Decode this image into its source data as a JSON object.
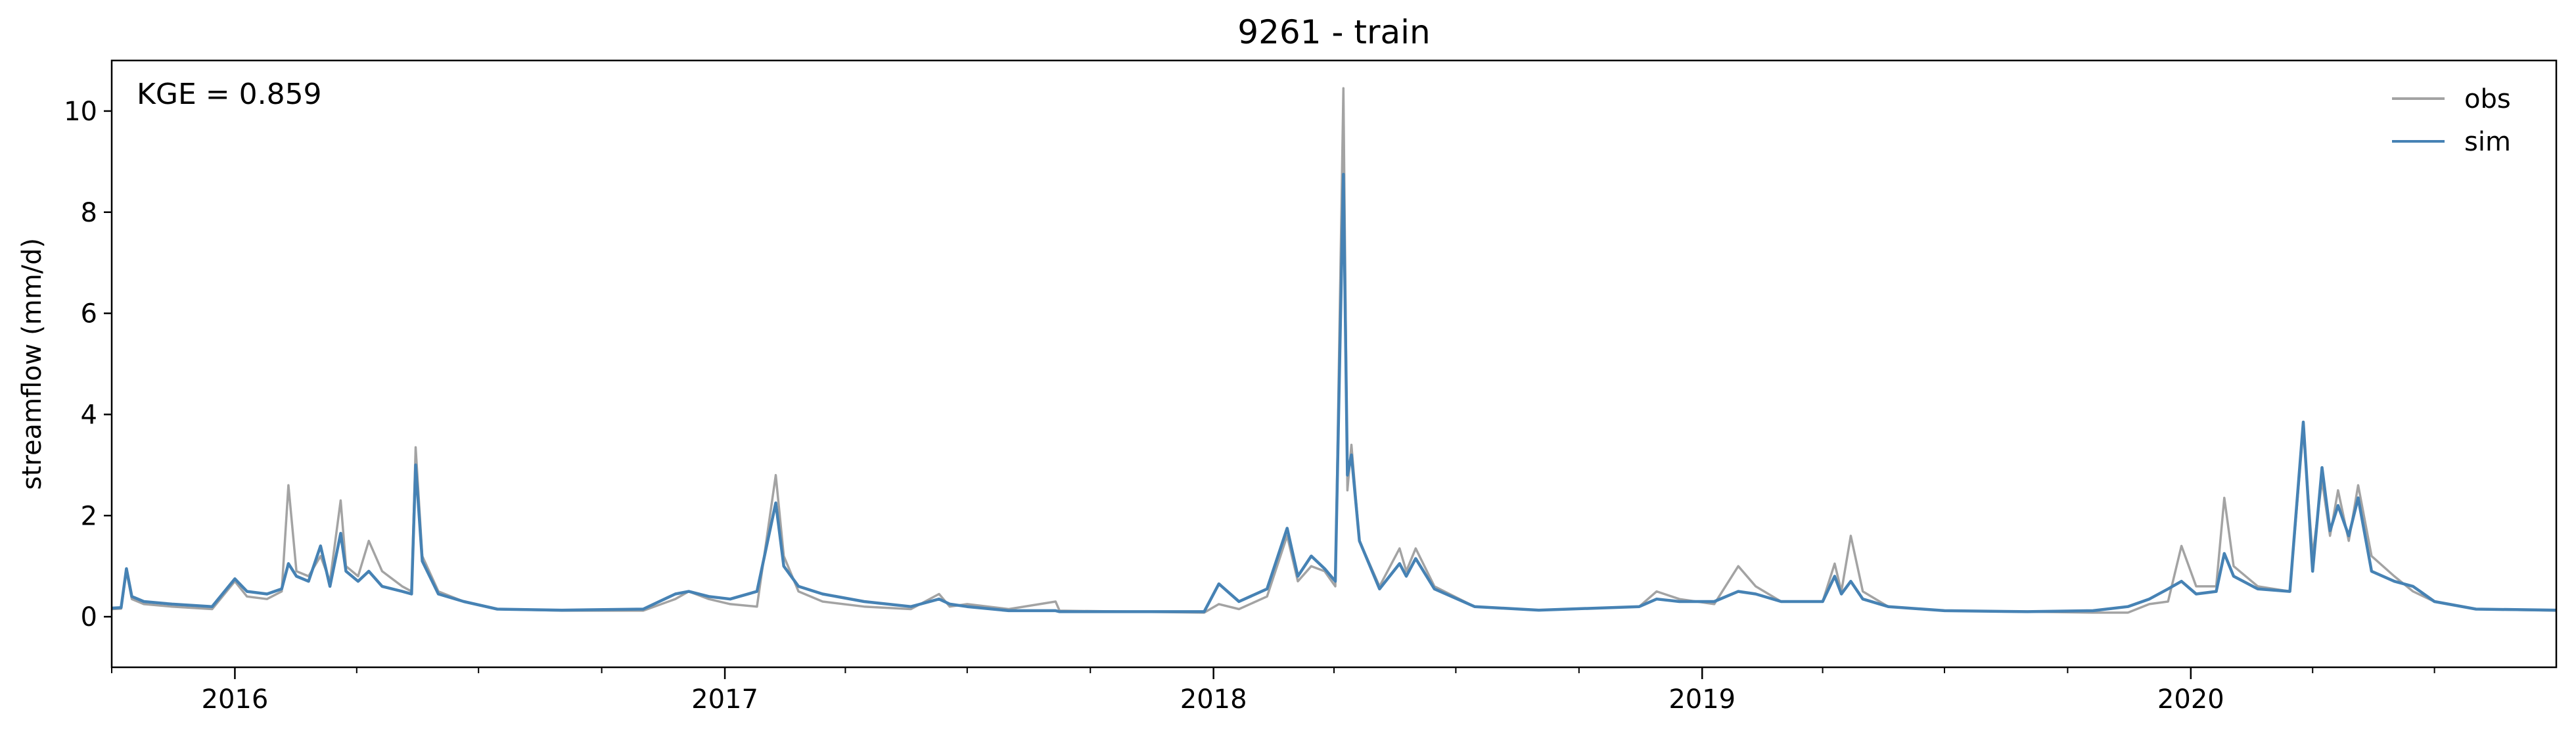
{
  "chart_data": {
    "type": "line",
    "title": "9261 - train",
    "xlabel": "",
    "ylabel": "streamflow (mm/d)",
    "x_range": [
      "2015-10-01",
      "2020-09-30"
    ],
    "ylim": [
      -1,
      11
    ],
    "yticks": [
      0,
      2,
      4,
      6,
      8,
      10
    ],
    "xticks": [
      {
        "date": "2016-01-01",
        "label": "2016"
      },
      {
        "date": "2017-01-01",
        "label": "2017"
      },
      {
        "date": "2018-01-01",
        "label": "2018"
      },
      {
        "date": "2019-01-01",
        "label": "2019"
      },
      {
        "date": "2020-01-01",
        "label": "2020"
      }
    ],
    "grid": false,
    "legend_position": "top-right",
    "annotation": "KGE = 0.859",
    "series": [
      {
        "name": "obs",
        "color": "#a3a3a3",
        "points": [
          [
            "2015-10-01",
            0.15
          ],
          [
            "2015-10-08",
            0.16
          ],
          [
            "2015-10-12",
            0.9
          ],
          [
            "2015-10-16",
            0.35
          ],
          [
            "2015-10-25",
            0.25
          ],
          [
            "2015-11-15",
            0.2
          ],
          [
            "2015-12-15",
            0.15
          ],
          [
            "2016-01-01",
            0.7
          ],
          [
            "2016-01-10",
            0.4
          ],
          [
            "2016-01-25",
            0.35
          ],
          [
            "2016-02-05",
            0.5
          ],
          [
            "2016-02-10",
            2.6
          ],
          [
            "2016-02-16",
            0.9
          ],
          [
            "2016-02-25",
            0.8
          ],
          [
            "2016-03-05",
            1.2
          ],
          [
            "2016-03-12",
            0.7
          ],
          [
            "2016-03-20",
            2.3
          ],
          [
            "2016-03-24",
            1.0
          ],
          [
            "2016-04-02",
            0.8
          ],
          [
            "2016-04-10",
            1.5
          ],
          [
            "2016-04-20",
            0.9
          ],
          [
            "2016-05-05",
            0.6
          ],
          [
            "2016-05-12",
            0.5
          ],
          [
            "2016-05-15",
            3.35
          ],
          [
            "2016-05-20",
            1.2
          ],
          [
            "2016-06-01",
            0.5
          ],
          [
            "2016-06-20",
            0.3
          ],
          [
            "2016-07-15",
            0.15
          ],
          [
            "2016-09-01",
            0.12
          ],
          [
            "2016-11-01",
            0.12
          ],
          [
            "2016-11-25",
            0.35
          ],
          [
            "2016-12-05",
            0.5
          ],
          [
            "2016-12-20",
            0.35
          ],
          [
            "2017-01-05",
            0.25
          ],
          [
            "2017-01-25",
            0.2
          ],
          [
            "2017-02-08",
            2.8
          ],
          [
            "2017-02-14",
            1.2
          ],
          [
            "2017-02-25",
            0.5
          ],
          [
            "2017-03-15",
            0.3
          ],
          [
            "2017-04-15",
            0.2
          ],
          [
            "2017-05-20",
            0.15
          ],
          [
            "2017-06-10",
            0.45
          ],
          [
            "2017-06-18",
            0.2
          ],
          [
            "2017-07-01",
            0.25
          ],
          [
            "2017-08-01",
            0.15
          ],
          [
            "2017-09-05",
            0.3
          ],
          [
            "2017-09-08",
            0.12
          ],
          [
            "2017-12-25",
            0.08
          ],
          [
            "2018-01-05",
            0.25
          ],
          [
            "2018-01-20",
            0.15
          ],
          [
            "2018-02-10",
            0.4
          ],
          [
            "2018-02-25",
            1.6
          ],
          [
            "2018-03-05",
            0.7
          ],
          [
            "2018-03-15",
            1.0
          ],
          [
            "2018-03-25",
            0.9
          ],
          [
            "2018-04-02",
            0.6
          ],
          [
            "2018-04-08",
            10.45
          ],
          [
            "2018-04-11",
            2.5
          ],
          [
            "2018-04-14",
            3.4
          ],
          [
            "2018-04-20",
            1.5
          ],
          [
            "2018-05-05",
            0.6
          ],
          [
            "2018-05-20",
            1.35
          ],
          [
            "2018-05-25",
            0.9
          ],
          [
            "2018-06-01",
            1.35
          ],
          [
            "2018-06-15",
            0.6
          ],
          [
            "2018-07-15",
            0.2
          ],
          [
            "2018-09-01",
            0.13
          ],
          [
            "2018-11-15",
            0.2
          ],
          [
            "2018-11-28",
            0.5
          ],
          [
            "2018-12-15",
            0.35
          ],
          [
            "2019-01-10",
            0.25
          ],
          [
            "2019-01-28",
            1.0
          ],
          [
            "2019-02-10",
            0.6
          ],
          [
            "2019-03-01",
            0.3
          ],
          [
            "2019-04-01",
            0.3
          ],
          [
            "2019-04-10",
            1.05
          ],
          [
            "2019-04-15",
            0.5
          ],
          [
            "2019-04-22",
            1.6
          ],
          [
            "2019-05-01",
            0.5
          ],
          [
            "2019-05-20",
            0.2
          ],
          [
            "2019-07-01",
            0.12
          ],
          [
            "2019-09-01",
            0.1
          ],
          [
            "2019-10-20",
            0.08
          ],
          [
            "2019-11-15",
            0.08
          ],
          [
            "2019-12-01",
            0.25
          ],
          [
            "2019-12-15",
            0.3
          ],
          [
            "2019-12-25",
            1.4
          ],
          [
            "2020-01-05",
            0.6
          ],
          [
            "2020-01-20",
            0.6
          ],
          [
            "2020-01-26",
            2.35
          ],
          [
            "2020-02-02",
            1.0
          ],
          [
            "2020-02-20",
            0.6
          ],
          [
            "2020-03-15",
            0.5
          ],
          [
            "2020-03-25",
            3.7
          ],
          [
            "2020-04-01",
            1.2
          ],
          [
            "2020-04-08",
            2.7
          ],
          [
            "2020-04-14",
            1.6
          ],
          [
            "2020-04-20",
            2.5
          ],
          [
            "2020-04-28",
            1.5
          ],
          [
            "2020-05-05",
            2.6
          ],
          [
            "2020-05-15",
            1.2
          ],
          [
            "2020-06-01",
            0.8
          ],
          [
            "2020-06-15",
            0.5
          ],
          [
            "2020-07-01",
            0.3
          ],
          [
            "2020-08-01",
            0.15
          ],
          [
            "2020-09-30",
            0.12
          ]
        ]
      },
      {
        "name": "sim",
        "color": "#4682b4",
        "points": [
          [
            "2015-10-01",
            0.17
          ],
          [
            "2015-10-08",
            0.18
          ],
          [
            "2015-10-12",
            0.95
          ],
          [
            "2015-10-16",
            0.4
          ],
          [
            "2015-10-25",
            0.3
          ],
          [
            "2015-11-15",
            0.25
          ],
          [
            "2015-12-15",
            0.2
          ],
          [
            "2016-01-01",
            0.75
          ],
          [
            "2016-01-10",
            0.5
          ],
          [
            "2016-01-25",
            0.45
          ],
          [
            "2016-02-05",
            0.55
          ],
          [
            "2016-02-10",
            1.05
          ],
          [
            "2016-02-16",
            0.8
          ],
          [
            "2016-02-25",
            0.7
          ],
          [
            "2016-03-05",
            1.4
          ],
          [
            "2016-03-12",
            0.6
          ],
          [
            "2016-03-20",
            1.65
          ],
          [
            "2016-03-24",
            0.9
          ],
          [
            "2016-04-02",
            0.7
          ],
          [
            "2016-04-10",
            0.9
          ],
          [
            "2016-04-20",
            0.6
          ],
          [
            "2016-05-05",
            0.5
          ],
          [
            "2016-05-12",
            0.45
          ],
          [
            "2016-05-15",
            3.0
          ],
          [
            "2016-05-20",
            1.1
          ],
          [
            "2016-06-01",
            0.45
          ],
          [
            "2016-06-20",
            0.3
          ],
          [
            "2016-07-15",
            0.15
          ],
          [
            "2016-09-01",
            0.13
          ],
          [
            "2016-11-01",
            0.15
          ],
          [
            "2016-11-25",
            0.45
          ],
          [
            "2016-12-05",
            0.5
          ],
          [
            "2016-12-20",
            0.4
          ],
          [
            "2017-01-05",
            0.35
          ],
          [
            "2017-01-25",
            0.5
          ],
          [
            "2017-02-08",
            2.25
          ],
          [
            "2017-02-14",
            1.0
          ],
          [
            "2017-02-25",
            0.6
          ],
          [
            "2017-03-15",
            0.45
          ],
          [
            "2017-04-15",
            0.3
          ],
          [
            "2017-05-20",
            0.2
          ],
          [
            "2017-06-10",
            0.35
          ],
          [
            "2017-06-18",
            0.25
          ],
          [
            "2017-07-01",
            0.2
          ],
          [
            "2017-08-01",
            0.12
          ],
          [
            "2017-09-05",
            0.12
          ],
          [
            "2017-09-08",
            0.1
          ],
          [
            "2017-12-25",
            0.1
          ],
          [
            "2018-01-05",
            0.65
          ],
          [
            "2018-01-20",
            0.3
          ],
          [
            "2018-02-10",
            0.55
          ],
          [
            "2018-02-25",
            1.75
          ],
          [
            "2018-03-05",
            0.8
          ],
          [
            "2018-03-15",
            1.2
          ],
          [
            "2018-03-25",
            0.95
          ],
          [
            "2018-04-02",
            0.7
          ],
          [
            "2018-04-08",
            8.75
          ],
          [
            "2018-04-11",
            2.8
          ],
          [
            "2018-04-14",
            3.2
          ],
          [
            "2018-04-20",
            1.5
          ],
          [
            "2018-05-05",
            0.55
          ],
          [
            "2018-05-20",
            1.05
          ],
          [
            "2018-05-25",
            0.8
          ],
          [
            "2018-06-01",
            1.15
          ],
          [
            "2018-06-15",
            0.55
          ],
          [
            "2018-07-15",
            0.2
          ],
          [
            "2018-09-01",
            0.13
          ],
          [
            "2018-11-15",
            0.2
          ],
          [
            "2018-11-28",
            0.35
          ],
          [
            "2018-12-15",
            0.3
          ],
          [
            "2019-01-10",
            0.3
          ],
          [
            "2019-01-28",
            0.5
          ],
          [
            "2019-02-10",
            0.45
          ],
          [
            "2019-03-01",
            0.3
          ],
          [
            "2019-04-01",
            0.3
          ],
          [
            "2019-04-10",
            0.8
          ],
          [
            "2019-04-15",
            0.45
          ],
          [
            "2019-04-22",
            0.7
          ],
          [
            "2019-05-01",
            0.35
          ],
          [
            "2019-05-20",
            0.2
          ],
          [
            "2019-07-01",
            0.12
          ],
          [
            "2019-09-01",
            0.1
          ],
          [
            "2019-10-20",
            0.12
          ],
          [
            "2019-11-15",
            0.2
          ],
          [
            "2019-12-01",
            0.35
          ],
          [
            "2019-12-15",
            0.55
          ],
          [
            "2019-12-25",
            0.7
          ],
          [
            "2020-01-05",
            0.45
          ],
          [
            "2020-01-20",
            0.5
          ],
          [
            "2020-01-26",
            1.25
          ],
          [
            "2020-02-02",
            0.8
          ],
          [
            "2020-02-20",
            0.55
          ],
          [
            "2020-03-15",
            0.5
          ],
          [
            "2020-03-25",
            3.85
          ],
          [
            "2020-04-01",
            0.9
          ],
          [
            "2020-04-08",
            2.95
          ],
          [
            "2020-04-14",
            1.7
          ],
          [
            "2020-04-20",
            2.2
          ],
          [
            "2020-04-28",
            1.6
          ],
          [
            "2020-05-05",
            2.35
          ],
          [
            "2020-05-15",
            0.9
          ],
          [
            "2020-06-01",
            0.7
          ],
          [
            "2020-06-15",
            0.6
          ],
          [
            "2020-07-01",
            0.3
          ],
          [
            "2020-08-01",
            0.15
          ],
          [
            "2020-09-30",
            0.13
          ]
        ]
      }
    ]
  }
}
